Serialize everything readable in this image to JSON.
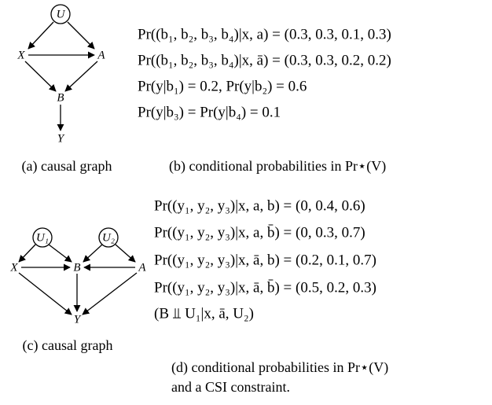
{
  "graph_a": {
    "nodes": [
      "U",
      "X",
      "A",
      "B",
      "Y"
    ],
    "caption": "(a) causal graph"
  },
  "equations_b": {
    "lines": [
      "Pr((b₁, b₂, b₃, b₄)|x, a) = (0.3, 0.3, 0.1, 0.3)",
      "Pr((b₁, b₂, b₃, b₄)|x, ā) = (0.3, 0.3, 0.2, 0.2)",
      "Pr(y|b₁) = 0.2, Pr(y|b₂) = 0.6",
      "Pr(y|b₃) = Pr(y|b₄) = 0.1"
    ],
    "caption": "(b) conditional probabilities in Pr⋆(V)"
  },
  "graph_c": {
    "nodes": [
      "U₁",
      "U₂",
      "X",
      "B",
      "A",
      "Y"
    ],
    "caption": "(c) causal graph"
  },
  "equations_d": {
    "lines": [
      "Pr((y₁, y₂, y₃)|x, a, b) = (0, 0.4, 0.6)",
      "Pr((y₁, y₂, y₃)|x, a, b̄) = (0, 0.3, 0.7)",
      "Pr((y₁, y₂, y₃)|x, ā, b) = (0.2, 0.1, 0.7)",
      "Pr((y₁, y₂, y₃)|x, ā, b̄) = (0.5, 0.2, 0.3)",
      "(B ⫫ U₁|x, ā, U₂)"
    ],
    "caption": [
      "(d) conditional probabilities in Pr⋆(V)",
      "and a CSI constraint."
    ]
  }
}
